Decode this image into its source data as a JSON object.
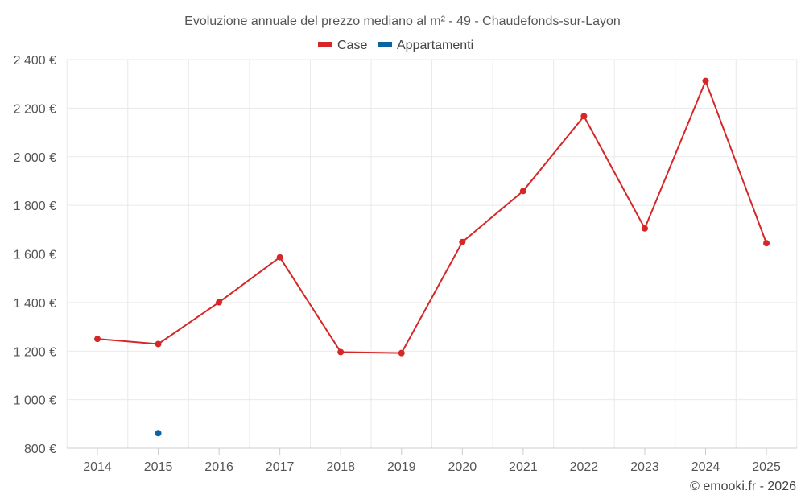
{
  "chart_data": {
    "type": "line",
    "title": "Evoluzione annuale del prezzo mediano al m² - 49 - Chaudefonds-sur-Layon",
    "categories": [
      "2014",
      "2015",
      "2016",
      "2017",
      "2018",
      "2019",
      "2020",
      "2021",
      "2022",
      "2023",
      "2024",
      "2025"
    ],
    "series": [
      {
        "name": "Case",
        "color": "#d62728",
        "values": [
          1250,
          1229,
          1401,
          1586,
          1196,
          1192,
          1649,
          1859,
          2167,
          1705,
          2312,
          1644
        ]
      },
      {
        "name": "Appartamenti",
        "color": "#0b63a3",
        "values": [
          null,
          862,
          null,
          null,
          null,
          null,
          null,
          null,
          null,
          null,
          null,
          null
        ]
      }
    ],
    "y_ticks": [
      800,
      1000,
      1200,
      1400,
      1600,
      1800,
      2000,
      2200,
      2400
    ],
    "y_tick_labels": [
      "800 €",
      "1 000 €",
      "1 200 €",
      "1 400 €",
      "1 600 €",
      "1 800 €",
      "2 000 €",
      "2 200 €",
      "2 400 €"
    ],
    "ylim": [
      800,
      2400
    ],
    "xlabel": "",
    "ylabel": "",
    "grid": true,
    "legend_position": "top-center"
  },
  "credit": "© emooki.fr - 2026"
}
